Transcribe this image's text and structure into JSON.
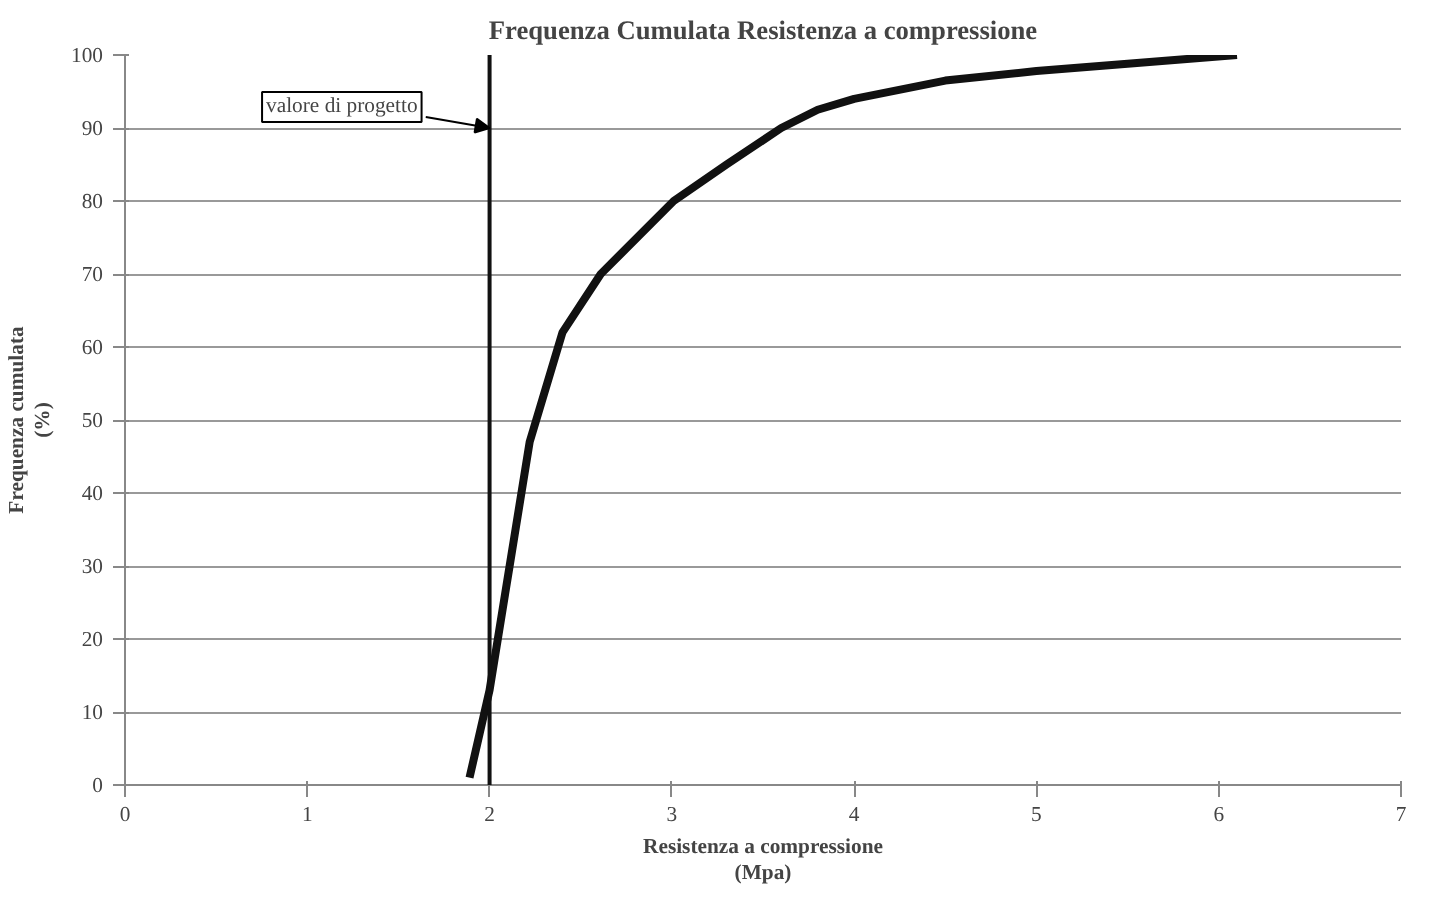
{
  "chart_data": {
    "type": "line",
    "title": "Frequenza Cumulata Resistenza a compressione",
    "xlabel": "Resistenza a compressione\n(Mpa)",
    "ylabel": "Frequenza cumulata\n(%)",
    "series": [
      {
        "color": "#111111",
        "x": [
          1.89,
          2.0,
          2.11,
          2.22,
          2.4,
          2.61,
          3.01,
          3.3,
          3.6,
          3.8,
          4.0,
          4.5,
          5.0,
          5.5,
          6.1
        ],
        "values": [
          1,
          13,
          30,
          47,
          62,
          70,
          80,
          85,
          90,
          92.5,
          94,
          96.5,
          97.8,
          98.8,
          100
        ]
      }
    ],
    "xlim": [
      0,
      7
    ],
    "xticks": [
      0,
      1,
      2,
      3,
      4,
      5,
      6,
      7
    ],
    "ylim": [
      0,
      100
    ],
    "yticks": [
      0,
      10,
      20,
      30,
      40,
      50,
      60,
      70,
      80,
      90,
      100
    ],
    "grid": "y",
    "marker": "none",
    "line_style": "solid",
    "ref_lines": [
      {
        "axis": "x",
        "value": 2,
        "color": "#111111"
      }
    ],
    "annotations": [
      {
        "text": "valore di progetto",
        "x": 2,
        "y": 90
      }
    ]
  }
}
